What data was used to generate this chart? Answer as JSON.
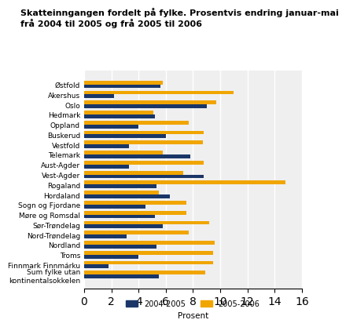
{
  "title": "Skatteinngangen fordelt på fylke. Prosentvis endring januar-mai\nfrå 2004 til 2005 og frå 2005 til 2006",
  "categories": [
    "Østfold",
    "Akershus",
    "Oslo",
    "Hedmark",
    "Oppland",
    "Buskerud",
    "Vestfold",
    "Telemark",
    "Aust-Agder",
    "Vest-Agder",
    "Rogaland",
    "Hordaland",
    "Sogn og Fjordane",
    "Møre og Romsdal",
    "Sør-Trøndelag",
    "Nord-Trøndelag",
    "Nordland",
    "Troms",
    "Finnmark Finnmárku",
    "Sum fylke utan\nkontinentalsokkelen"
  ],
  "values_2004_2005": [
    5.6,
    2.2,
    9.0,
    5.2,
    4.0,
    6.0,
    3.3,
    7.8,
    3.3,
    8.8,
    5.3,
    6.3,
    4.5,
    5.2,
    5.8,
    3.1,
    5.3,
    4.0,
    1.8,
    5.5
  ],
  "values_2005_2006": [
    5.8,
    11.0,
    9.7,
    5.1,
    7.7,
    8.8,
    8.7,
    5.8,
    8.8,
    7.3,
    14.8,
    5.5,
    7.5,
    7.5,
    9.2,
    7.7,
    9.6,
    9.5,
    9.5,
    8.9
  ],
  "color_2004_2005": "#1a3668",
  "color_2005_2006": "#f0a500",
  "xlabel": "Prosent",
  "xlim": [
    0,
    16
  ],
  "xticks": [
    0,
    2,
    4,
    6,
    8,
    10,
    12,
    14,
    16
  ],
  "legend_labels": [
    "2004-2005",
    "2005-2006"
  ],
  "background_color": "#efefef"
}
